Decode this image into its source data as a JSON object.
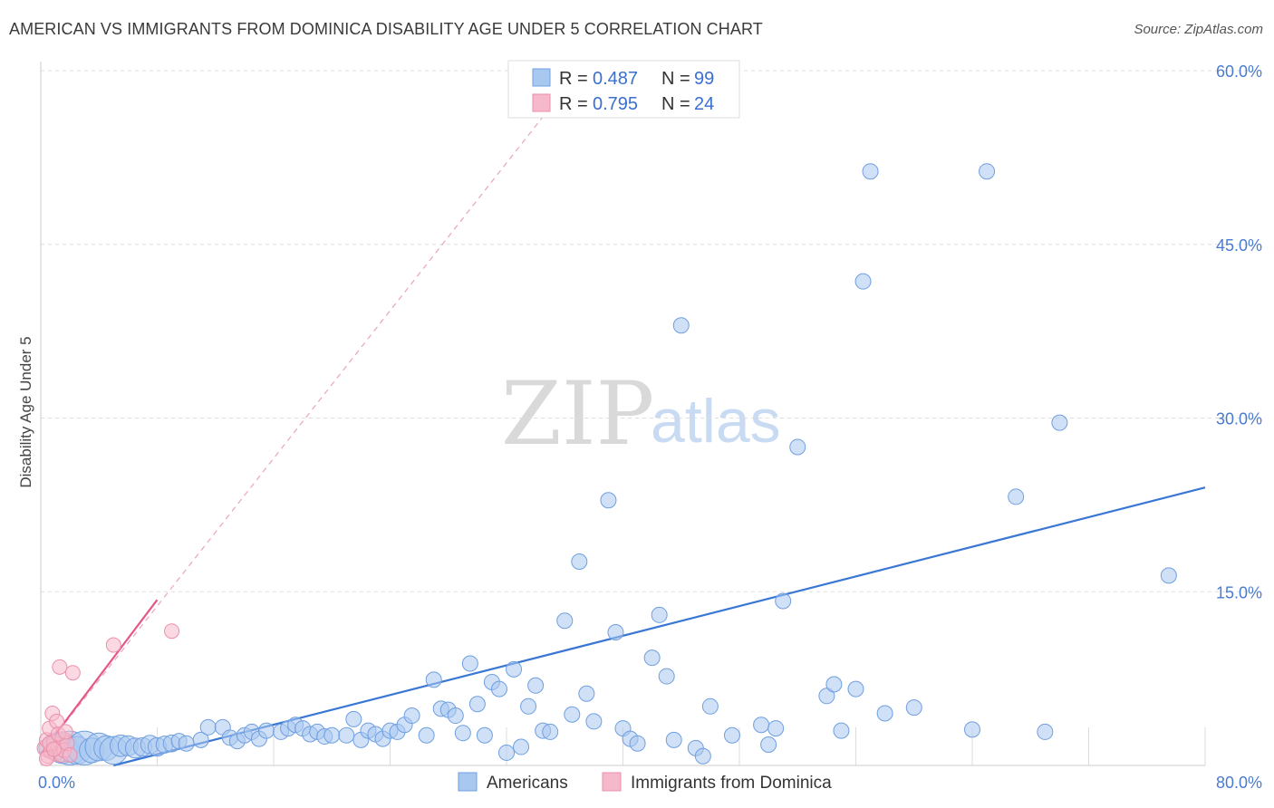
{
  "title": "AMERICAN VS IMMIGRANTS FROM DOMINICA DISABILITY AGE UNDER 5 CORRELATION CHART",
  "source": "Source: ZipAtlas.com",
  "watermark": {
    "zip": "ZIP",
    "atlas": "atlas"
  },
  "legend": {
    "r_label": "R =",
    "n_label": "N =",
    "entries": [
      {
        "r": "0.487",
        "n": "99",
        "color": "#a9c8f0"
      },
      {
        "r": "0.795",
        "n": "24",
        "color": "#f6b9cb"
      }
    ]
  },
  "bottom_legend": [
    {
      "label": "Americans",
      "color": "#a9c8f0"
    },
    {
      "label": "Immigrants from Dominica",
      "color": "#f6b9cb"
    }
  ],
  "colors": {
    "blue": "#3a77d4",
    "blue_fill": "#a9c8f0",
    "pink": "#e4578a",
    "pink_fill": "#f6b9cb",
    "grid": "#dddddd"
  },
  "chart_data": {
    "type": "scatter",
    "title": "AMERICAN VS IMMIGRANTS FROM DOMINICA DISABILITY AGE UNDER 5 CORRELATION CHART",
    "xlabel": "",
    "ylabel": "Disability Age Under 5",
    "xlim": [
      0,
      80
    ],
    "ylim": [
      0,
      60
    ],
    "x_tick_labels": [
      "0.0%",
      "80.0%"
    ],
    "y_ticks": [
      15,
      30,
      45,
      60
    ],
    "y_tick_labels": [
      "15.0%",
      "30.0%",
      "45.0%",
      "60.0%"
    ],
    "grid": true,
    "legend_position": "top-center",
    "series": [
      {
        "name": "Americans",
        "color": "#a9c8f0",
        "trend": {
          "x": [
            5.0,
            80.0
          ],
          "y": [
            0.0,
            24.0
          ],
          "color": "#3a77d4"
        },
        "points": [
          [
            0.5,
            1.5,
            1.2
          ],
          [
            1.0,
            1.8,
            1.5
          ],
          [
            1.5,
            1.5,
            2.0
          ],
          [
            2.0,
            1.5,
            2.2
          ],
          [
            2.5,
            1.3,
            1.8
          ],
          [
            3.0,
            1.5,
            2.2
          ],
          [
            3.5,
            1.3,
            1.6
          ],
          [
            4.0,
            1.6,
            1.8
          ],
          [
            4.5,
            1.5,
            1.6
          ],
          [
            5.0,
            1.3,
            1.8
          ],
          [
            5.5,
            1.7,
            1.4
          ],
          [
            6.0,
            1.7,
            1.3
          ],
          [
            6.5,
            1.5,
            1.3
          ],
          [
            7.0,
            1.6,
            1.2
          ],
          [
            7.5,
            1.8,
            1.2
          ],
          [
            8.0,
            1.6,
            1.2
          ],
          [
            8.5,
            1.8,
            1.1
          ],
          [
            9.0,
            1.9,
            1.1
          ],
          [
            9.5,
            2.1,
            1.0
          ],
          [
            10.0,
            1.9,
            1.0
          ],
          [
            11.0,
            2.2,
            1.0
          ],
          [
            11.5,
            3.3,
            1.0
          ],
          [
            12.5,
            3.3,
            1.0
          ],
          [
            13.0,
            2.4,
            1.0
          ],
          [
            13.5,
            2.1,
            1.0
          ],
          [
            14.0,
            2.6,
            1.0
          ],
          [
            14.5,
            2.9,
            1.0
          ],
          [
            15.0,
            2.3,
            1.0
          ],
          [
            15.5,
            3.0,
            1.0
          ],
          [
            16.5,
            2.9,
            1.0
          ],
          [
            17.0,
            3.2,
            1.0
          ],
          [
            17.5,
            3.5,
            1.0
          ],
          [
            18.0,
            3.2,
            1.0
          ],
          [
            18.5,
            2.7,
            1.0
          ],
          [
            19.0,
            2.9,
            1.0
          ],
          [
            19.5,
            2.5,
            1.0
          ],
          [
            20.0,
            2.6,
            1.0
          ],
          [
            21.0,
            2.6,
            1.0
          ],
          [
            21.5,
            4.0,
            1.0
          ],
          [
            22.0,
            2.2,
            1.0
          ],
          [
            22.5,
            3.0,
            1.0
          ],
          [
            23.0,
            2.7,
            1.0
          ],
          [
            23.5,
            2.3,
            1.0
          ],
          [
            24.0,
            3.0,
            1.0
          ],
          [
            24.5,
            2.9,
            1.0
          ],
          [
            25.0,
            3.5,
            1.0
          ],
          [
            25.5,
            4.3,
            1.0
          ],
          [
            26.5,
            2.6,
            1.0
          ],
          [
            27.0,
            7.4,
            1.0
          ],
          [
            27.5,
            4.9,
            1.0
          ],
          [
            28.0,
            4.8,
            1.0
          ],
          [
            28.5,
            4.3,
            1.0
          ],
          [
            29.0,
            2.8,
            1.0
          ],
          [
            29.5,
            8.8,
            1.0
          ],
          [
            30.0,
            5.3,
            1.0
          ],
          [
            30.5,
            2.6,
            1.0
          ],
          [
            31.0,
            7.2,
            1.0
          ],
          [
            31.5,
            6.6,
            1.0
          ],
          [
            32.0,
            1.1,
            1.0
          ],
          [
            32.5,
            8.3,
            1.0
          ],
          [
            33.0,
            1.6,
            1.0
          ],
          [
            33.5,
            5.1,
            1.0
          ],
          [
            34.0,
            6.9,
            1.0
          ],
          [
            34.5,
            3.0,
            1.0
          ],
          [
            35.0,
            2.9,
            1.0
          ],
          [
            36.0,
            12.5,
            1.0
          ],
          [
            36.5,
            4.4,
            1.0
          ],
          [
            37.0,
            17.6,
            1.0
          ],
          [
            37.5,
            6.2,
            1.0
          ],
          [
            38.0,
            3.8,
            1.0
          ],
          [
            39.0,
            22.9,
            1.0
          ],
          [
            39.5,
            11.5,
            1.0
          ],
          [
            40.0,
            3.2,
            1.0
          ],
          [
            40.5,
            2.3,
            1.0
          ],
          [
            41.0,
            1.9,
            1.0
          ],
          [
            42.0,
            9.3,
            1.0
          ],
          [
            42.5,
            13.0,
            1.0
          ],
          [
            43.0,
            7.7,
            1.0
          ],
          [
            43.5,
            2.2,
            1.0
          ],
          [
            44.0,
            38.0,
            1.0
          ],
          [
            45.0,
            1.5,
            1.0
          ],
          [
            45.5,
            0.8,
            1.0
          ],
          [
            46.0,
            5.1,
            1.0
          ],
          [
            47.5,
            2.6,
            1.0
          ],
          [
            49.5,
            3.5,
            1.0
          ],
          [
            50.0,
            1.8,
            1.0
          ],
          [
            50.5,
            3.2,
            1.0
          ],
          [
            51.0,
            14.2,
            1.0
          ],
          [
            52.0,
            27.5,
            1.0
          ],
          [
            54.0,
            6.0,
            1.0
          ],
          [
            54.5,
            7.0,
            1.0
          ],
          [
            55.0,
            3.0,
            1.0
          ],
          [
            56.0,
            6.6,
            1.0
          ],
          [
            56.5,
            41.8,
            1.0
          ],
          [
            57.0,
            51.3,
            1.0
          ],
          [
            58.0,
            4.5,
            1.0
          ],
          [
            60.0,
            5.0,
            1.0
          ],
          [
            64.0,
            3.1,
            1.0
          ],
          [
            65.0,
            51.3,
            1.0
          ],
          [
            67.0,
            23.2,
            1.0
          ],
          [
            69.0,
            2.9,
            1.0
          ],
          [
            70.0,
            29.6,
            1.0
          ],
          [
            77.5,
            16.4,
            1.0
          ]
        ]
      },
      {
        "name": "Immigrants from Dominica",
        "color": "#f6b9cb",
        "trend": {
          "x": [
            0.0,
            8.0
          ],
          "y": [
            1.0,
            14.3
          ],
          "color": "#e4578a",
          "extended": {
            "x": [
              0.0,
              37.0
            ],
            "y": [
              1.0,
              60.0
            ]
          }
        },
        "points": [
          [
            0.3,
            1.5,
            1.1
          ],
          [
            0.4,
            2.2,
            1.0
          ],
          [
            0.5,
            0.8,
            1.0
          ],
          [
            0.6,
            3.2,
            1.0
          ],
          [
            0.7,
            1.2,
            1.0
          ],
          [
            0.8,
            4.5,
            1.0
          ],
          [
            0.9,
            2.0,
            1.0
          ],
          [
            1.0,
            1.0,
            1.0
          ],
          [
            1.1,
            3.8,
            1.0
          ],
          [
            1.2,
            1.6,
            1.0
          ],
          [
            1.3,
            8.5,
            1.0
          ],
          [
            1.4,
            0.9,
            1.0
          ],
          [
            1.5,
            2.3,
            1.0
          ],
          [
            1.6,
            1.3,
            1.0
          ],
          [
            1.8,
            1.9,
            1.0
          ],
          [
            2.0,
            0.9,
            1.0
          ],
          [
            2.2,
            8.0,
            1.0
          ],
          [
            0.4,
            0.6,
            1.0
          ],
          [
            0.6,
            1.9,
            1.0
          ],
          [
            0.9,
            1.4,
            1.0
          ],
          [
            1.2,
            2.7,
            1.0
          ],
          [
            1.7,
            2.9,
            1.0
          ],
          [
            5.0,
            10.4,
            1.0
          ],
          [
            9.0,
            11.6,
            1.0
          ]
        ]
      }
    ]
  }
}
